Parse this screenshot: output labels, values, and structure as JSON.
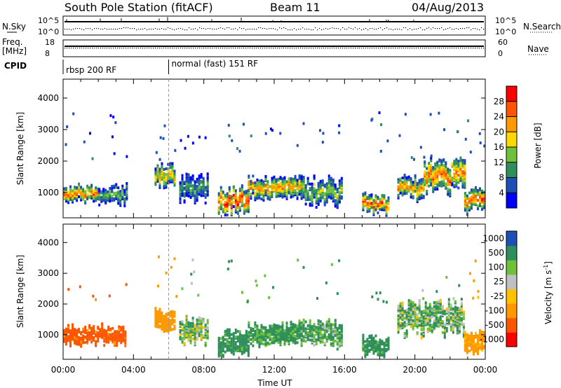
{
  "header": {
    "station": "South Pole Station (fitACF)",
    "beam": "Beam 11",
    "date": "04/Aug/2013"
  },
  "top_panel": {
    "left_label": "N.Sky",
    "left_ticks": [
      "10^5",
      "10^0"
    ],
    "right_label": "N.Search",
    "right_ticks": [
      "10^5",
      "10^0"
    ]
  },
  "freq_panel": {
    "left_label_1": "Freq.",
    "left_label_2": "[MHz]",
    "left_ticks": [
      "18",
      "8"
    ],
    "right_label": "Nave",
    "right_ticks": [
      "60",
      "0"
    ]
  },
  "cpid": {
    "label": "CPID",
    "segments": [
      {
        "text": "rbsp 200 RF",
        "start_hour": 0
      },
      {
        "text": "normal (fast) 151 RF",
        "start_hour": 6
      }
    ]
  },
  "colors": {
    "power_scale": [
      "#0000ff",
      "#1e4fb5",
      "#2f8f5a",
      "#6fc03a",
      "#ffd700",
      "#ff9900",
      "#ff5500",
      "#ff0000"
    ],
    "velocity_scale": [
      "#ff0000",
      "#ff5500",
      "#ff9900",
      "#ffc000",
      "#c0c0c0",
      "#6fc03a",
      "#2f8f5a",
      "#1e4fb5"
    ]
  },
  "chart_data": [
    {
      "type": "heatmap",
      "name": "power",
      "ylabel": "Slant Range [km]",
      "xlabel": "",
      "xlim": [
        0,
        24
      ],
      "ylim": [
        200,
        4600
      ],
      "yticks": [
        1000,
        2000,
        3000,
        4000
      ],
      "colorbar": {
        "label": "Power [dB]",
        "range": [
          0,
          32
        ],
        "tick_labels": [
          "4",
          "8",
          "12",
          "16",
          "20",
          "24",
          "28"
        ]
      },
      "echo_regions": [
        {
          "t0": 0.0,
          "t1": 2.0,
          "r_center": 950,
          "r_width": 450,
          "peak_db": 26
        },
        {
          "t0": 2.0,
          "t1": 3.6,
          "r_center": 900,
          "r_width": 500,
          "peak_db": 14
        },
        {
          "t0": 5.2,
          "t1": 6.4,
          "r_center": 1500,
          "r_width": 600,
          "peak_db": 22
        },
        {
          "t0": 6.6,
          "t1": 8.2,
          "r_center": 1100,
          "r_width": 700,
          "peak_db": 12
        },
        {
          "t0": 8.8,
          "t1": 10.5,
          "r_center": 700,
          "r_width": 700,
          "peak_db": 30
        },
        {
          "t0": 10.5,
          "t1": 13.5,
          "r_center": 1100,
          "r_width": 600,
          "peak_db": 24
        },
        {
          "t0": 13.5,
          "t1": 15.8,
          "r_center": 1000,
          "r_width": 700,
          "peak_db": 16
        },
        {
          "t0": 17.0,
          "t1": 18.5,
          "r_center": 600,
          "r_width": 500,
          "peak_db": 28
        },
        {
          "t0": 19.0,
          "t1": 20.5,
          "r_center": 1100,
          "r_width": 600,
          "peak_db": 24
        },
        {
          "t0": 20.5,
          "t1": 22.8,
          "r_center": 1500,
          "r_width": 900,
          "peak_db": 26
        },
        {
          "t0": 22.8,
          "t1": 24.0,
          "r_center": 700,
          "r_width": 600,
          "peak_db": 28
        }
      ]
    },
    {
      "type": "heatmap",
      "name": "velocity",
      "ylabel": "Slant Range [km]",
      "xlabel": "Time UT",
      "xlim": [
        0,
        24
      ],
      "ylim": [
        200,
        4600
      ],
      "yticks": [
        1000,
        2000,
        3000,
        4000
      ],
      "xtick_labels": [
        "00:00",
        "04:00",
        "08:00",
        "12:00",
        "16:00",
        "20:00",
        "00:00"
      ],
      "xticks": [
        0,
        4,
        8,
        12,
        16,
        20,
        24
      ],
      "colorbar": {
        "label": "Velocity [m s-1]",
        "label_main": "Velocity",
        "label_unit": "[m s",
        "label_exp": "-1",
        "label_close": "]",
        "tick_labels": [
          "-1000",
          "-500",
          "-100",
          "-25",
          "25",
          "100",
          "500",
          "1000"
        ]
      },
      "echo_regions": [
        {
          "t0": 0.0,
          "t1": 3.6,
          "r_center": 950,
          "r_width": 500,
          "vel": -600
        },
        {
          "t0": 5.2,
          "t1": 6.4,
          "r_center": 1500,
          "r_width": 600,
          "vel": -300
        },
        {
          "t0": 6.6,
          "t1": 8.2,
          "r_center": 1100,
          "r_width": 700,
          "vel": 60
        },
        {
          "t0": 8.8,
          "t1": 10.5,
          "r_center": 700,
          "r_width": 700,
          "vel": 200
        },
        {
          "t0": 10.5,
          "t1": 13.5,
          "r_center": 1000,
          "r_width": 600,
          "vel": 150
        },
        {
          "t0": 13.5,
          "t1": 15.8,
          "r_center": 1000,
          "r_width": 700,
          "vel": 120
        },
        {
          "t0": 17.0,
          "t1": 18.5,
          "r_center": 600,
          "r_width": 500,
          "vel": 200
        },
        {
          "t0": 19.0,
          "t1": 22.8,
          "r_center": 1500,
          "r_width": 900,
          "vel": 80
        },
        {
          "t0": 22.8,
          "t1": 24.0,
          "r_center": 700,
          "r_width": 600,
          "vel": -200
        }
      ]
    }
  ]
}
